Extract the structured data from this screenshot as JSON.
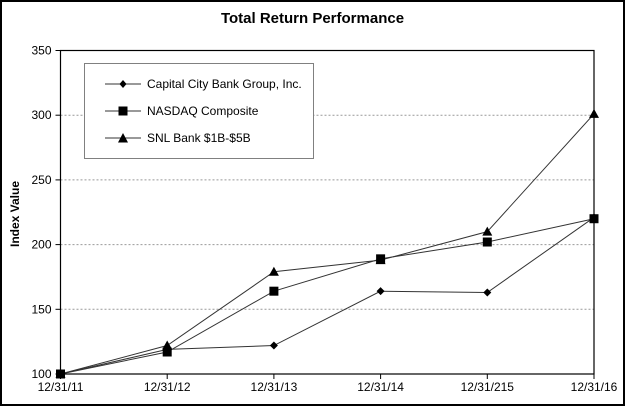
{
  "chart_data": {
    "type": "line",
    "title": "Total Return Performance",
    "ylabel": "Index Value",
    "xlabel": "",
    "ylim": [
      100,
      350
    ],
    "ytick_step": 50,
    "grid": "horizontal dashed gray, box around plot area",
    "legend_position": "inside top-left",
    "categories": [
      "12/31/11",
      "12/31/12",
      "12/31/13",
      "12/31/14",
      "12/31/215",
      "12/31/16"
    ],
    "series": [
      {
        "name": "Capital City Bank Group, Inc.",
        "marker": "diamond",
        "values": [
          100,
          119,
          122,
          164,
          163,
          221
        ]
      },
      {
        "name": "NASDAQ Composite",
        "marker": "square",
        "values": [
          100,
          117,
          164,
          189,
          202,
          220
        ]
      },
      {
        "name": "SNL Bank $1B-$5B",
        "marker": "triangle",
        "values": [
          100,
          122,
          179,
          188,
          210,
          301
        ]
      }
    ],
    "colors": {
      "line": "#333333",
      "marker": "#000000",
      "grid": "#999999",
      "text": "#000000",
      "legend_border": "#808080",
      "background": "#ffffff",
      "frame_border": "#000000"
    }
  }
}
